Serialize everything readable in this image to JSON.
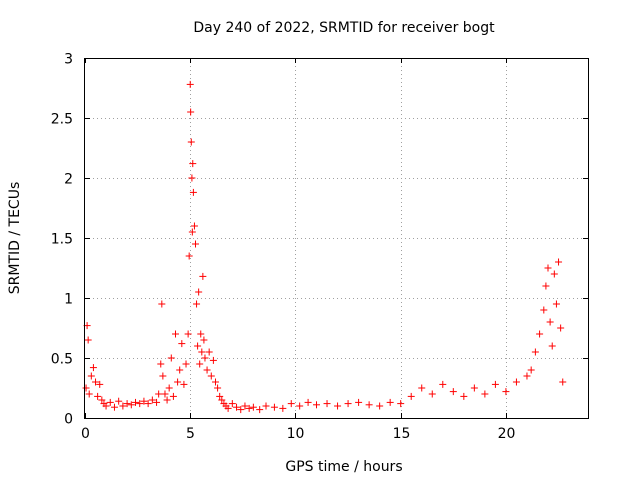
{
  "colors": {
    "series": "#ff0000",
    "grid": "#a0a0a0",
    "frame": "#000000"
  },
  "chart_data": {
    "type": "scatter",
    "title": "Day 240 of 2022, SRMTID for receiver bogt",
    "xlabel": "GPS time / hours",
    "ylabel": "SRMTID / TECUs",
    "xlim": [
      0,
      23.9
    ],
    "ylim": [
      0,
      3
    ],
    "xticks": [
      0,
      5,
      10,
      15,
      20
    ],
    "xtick_labels": [
      "0",
      "5",
      "10",
      "15",
      "20"
    ],
    "yticks": [
      0,
      0.5,
      1,
      1.5,
      2,
      2.5,
      3
    ],
    "ytick_labels": [
      "0",
      "0.5",
      "1",
      "1.5",
      "2",
      "2.5",
      "3"
    ],
    "grid": true,
    "marker": "+",
    "series": [
      {
        "name": "SRMTID",
        "x": [
          0.05,
          0.1,
          0.15,
          0.2,
          0.3,
          0.4,
          0.5,
          0.6,
          0.7,
          0.8,
          0.9,
          1.0,
          1.2,
          1.4,
          1.6,
          1.8,
          2.0,
          2.2,
          2.4,
          2.6,
          2.8,
          3.0,
          3.2,
          3.4,
          3.5,
          3.6,
          3.65,
          3.7,
          3.8,
          3.9,
          4.0,
          4.1,
          4.2,
          4.3,
          4.4,
          4.5,
          4.6,
          4.7,
          4.8,
          4.9,
          4.95,
          5.0,
          5.02,
          5.05,
          5.08,
          5.1,
          5.12,
          5.15,
          5.2,
          5.25,
          5.3,
          5.35,
          5.4,
          5.45,
          5.5,
          5.55,
          5.6,
          5.65,
          5.7,
          5.8,
          5.9,
          6.0,
          6.1,
          6.2,
          6.3,
          6.4,
          6.5,
          6.6,
          6.7,
          6.8,
          7.0,
          7.2,
          7.4,
          7.6,
          7.8,
          8.0,
          8.3,
          8.6,
          9.0,
          9.4,
          9.8,
          10.2,
          10.6,
          11.0,
          11.5,
          12.0,
          12.5,
          13.0,
          13.5,
          14.0,
          14.5,
          15.0,
          15.5,
          16.0,
          16.5,
          17.0,
          17.5,
          18.0,
          18.5,
          19.0,
          19.5,
          20.0,
          20.5,
          21.0,
          21.2,
          21.4,
          21.6,
          21.8,
          21.9,
          22.0,
          22.1,
          22.2,
          22.3,
          22.4,
          22.5,
          22.6,
          22.7
        ],
        "y": [
          0.25,
          0.77,
          0.65,
          0.2,
          0.35,
          0.42,
          0.3,
          0.18,
          0.28,
          0.15,
          0.12,
          0.1,
          0.13,
          0.09,
          0.14,
          0.1,
          0.12,
          0.11,
          0.13,
          0.12,
          0.14,
          0.12,
          0.15,
          0.13,
          0.2,
          0.45,
          0.95,
          0.35,
          0.2,
          0.15,
          0.25,
          0.5,
          0.18,
          0.7,
          0.3,
          0.4,
          0.62,
          0.28,
          0.45,
          0.7,
          1.35,
          2.78,
          2.55,
          2.3,
          2.0,
          1.55,
          2.12,
          1.88,
          1.6,
          1.45,
          0.95,
          0.6,
          1.05,
          0.45,
          0.7,
          0.55,
          1.18,
          0.65,
          0.5,
          0.4,
          0.55,
          0.35,
          0.48,
          0.3,
          0.25,
          0.18,
          0.15,
          0.12,
          0.1,
          0.08,
          0.12,
          0.09,
          0.07,
          0.1,
          0.08,
          0.09,
          0.07,
          0.1,
          0.09,
          0.08,
          0.12,
          0.1,
          0.13,
          0.11,
          0.12,
          0.1,
          0.12,
          0.13,
          0.11,
          0.1,
          0.13,
          0.12,
          0.18,
          0.25,
          0.2,
          0.28,
          0.22,
          0.18,
          0.25,
          0.2,
          0.28,
          0.22,
          0.3,
          0.35,
          0.4,
          0.55,
          0.7,
          0.9,
          1.1,
          1.25,
          0.8,
          0.6,
          1.2,
          0.95,
          1.3,
          0.75,
          0.3
        ]
      }
    ]
  }
}
